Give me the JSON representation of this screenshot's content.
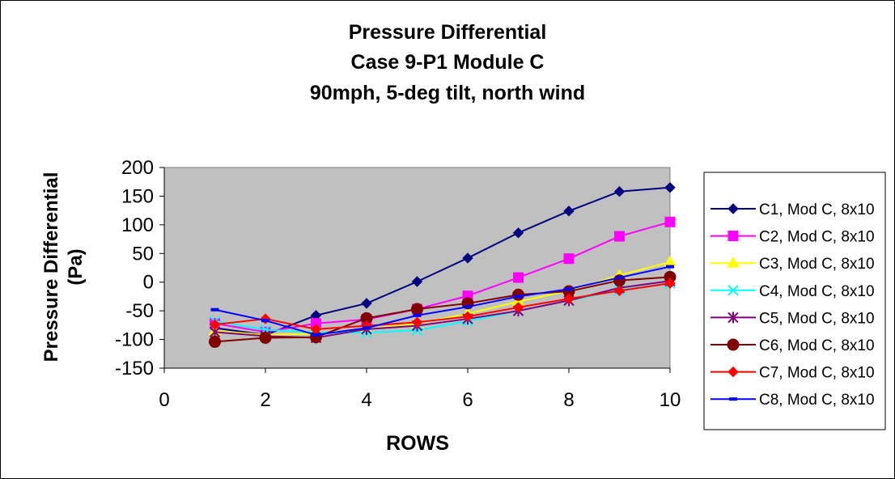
{
  "chart_data": {
    "type": "line",
    "title_lines": [
      "Pressure Differential",
      "Case 9-P1 Module C",
      "90mph, 5-deg tilt, north wind"
    ],
    "xlabel": "ROWS",
    "ylabel_lines": [
      "Pressure Differential",
      "(Pa)"
    ],
    "xlim": [
      0,
      10
    ],
    "ylim": [
      -150,
      200
    ],
    "x_ticks": [
      0,
      2,
      4,
      6,
      8,
      10
    ],
    "y_ticks": [
      -150,
      -100,
      -50,
      0,
      50,
      100,
      150,
      200
    ],
    "x_tick_labels": [
      "0",
      "2",
      "4",
      "6",
      "8",
      "10"
    ],
    "y_tick_labels": [
      "-150",
      "-100",
      "-50",
      "0",
      "50",
      "100",
      "150",
      "200"
    ],
    "plot_background": "#C0C0C0",
    "gridlines": false,
    "legend_position": "right",
    "x": [
      1,
      2,
      3,
      4,
      5,
      6,
      7,
      8,
      9,
      10
    ],
    "series": [
      {
        "name": "C1, Mod C, 8x10",
        "color": "#000080",
        "marker": "diamond",
        "values": [
          -80,
          -92,
          -58,
          -37,
          1,
          42,
          86,
          124,
          158,
          165
        ]
      },
      {
        "name": "C2, Mod C, 8x10",
        "color": "#FF00FF",
        "marker": "square",
        "values": [
          -72,
          -87,
          -72,
          -65,
          -47,
          -24,
          8,
          41,
          80,
          105
        ]
      },
      {
        "name": "C3, Mod C, 8x10",
        "color": "#FFFF00",
        "marker": "triangle",
        "values": [
          -85,
          -92,
          -90,
          -82,
          -72,
          -55,
          -34,
          -15,
          12,
          35
        ]
      },
      {
        "name": "C4, Mod C, 8x10",
        "color": "#00FFFF",
        "marker": "x",
        "values": [
          -68,
          -83,
          -88,
          -88,
          -84,
          -68,
          -50,
          -32,
          -14,
          -2
        ]
      },
      {
        "name": "C5, Mod C, 8x10",
        "color": "#800080",
        "marker": "star",
        "values": [
          -87,
          -94,
          -97,
          -82,
          -76,
          -64,
          -50,
          -32,
          -10,
          2
        ]
      },
      {
        "name": "C6, Mod C, 8x10",
        "color": "#800000",
        "marker": "circle",
        "values": [
          -104,
          -97,
          -96,
          -63,
          -47,
          -37,
          -22,
          -16,
          3,
          9
        ]
      },
      {
        "name": "C7, Mod C, 8x10",
        "color": "#FF0000",
        "marker": "diamond",
        "values": [
          -74,
          -64,
          -82,
          -76,
          -70,
          -60,
          -44,
          -29,
          -15,
          -2
        ]
      },
      {
        "name": "C8, Mod C, 8x10",
        "color": "#0000FF",
        "marker": "dash",
        "values": [
          -48,
          -67,
          -92,
          -80,
          -58,
          -43,
          -25,
          -12,
          8,
          27
        ]
      }
    ]
  }
}
